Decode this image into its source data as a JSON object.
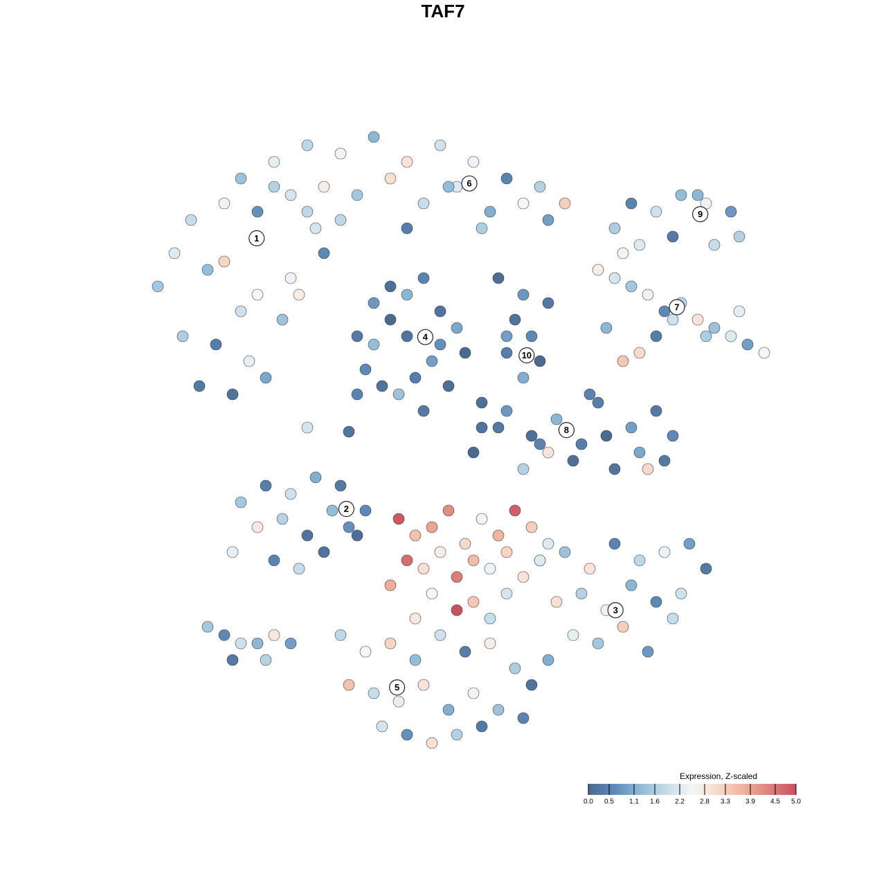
{
  "chart_data": {
    "type": "scatter",
    "title": "TAF7",
    "xlim": [
      -40,
      40
    ],
    "ylim": [
      -40,
      40
    ],
    "color_title": "Expression, Z-scaled",
    "clim": [
      0,
      5
    ],
    "colors": [
      "#4a6a92",
      "#5d8ab8",
      "#8fbad8",
      "#c4dcea",
      "#f4f6f7",
      "#f8d9c9",
      "#efb19b",
      "#dd7f7a",
      "#c9505f"
    ],
    "cticks": [
      {
        "value": 0,
        "label": "0.0"
      },
      0.5,
      1.1,
      1.6,
      2.2,
      2.8,
      3.3,
      3.9,
      4.5,
      {
        "value": 5,
        "label": "5.0"
      }
    ],
    "groups": [
      {
        "x": [
          -36,
          -34,
          -32,
          -30,
          -28,
          -26,
          -24,
          -22,
          -20,
          -18,
          -16,
          -33,
          -29,
          -25,
          -21,
          -17,
          -31,
          -27,
          -23,
          -19,
          -28,
          -24
        ],
        "y": [
          18,
          22,
          26,
          20,
          28,
          15,
          24,
          30,
          19,
          27,
          22,
          12,
          11,
          9,
          14,
          25,
          6,
          5,
          7,
          17,
          21,
          17
        ],
        "expression": [
          1.5,
          2.2,
          1.9,
          1.3,
          2.6,
          2.0,
          2.9,
          1.7,
          2.4,
          1.8,
          0.6,
          1.6,
          0.4,
          2.3,
          1.4,
          2.1,
          0.3,
          0.2,
          1.0,
          2.7,
          3.2,
          2.5
        ]
      },
      {
        "x": [
          -26,
          -22,
          -18,
          -14,
          -10,
          -6,
          -2,
          2,
          6,
          10,
          13,
          -20,
          -16,
          -12,
          -8,
          -4,
          0,
          4,
          8,
          -24,
          -14,
          -6,
          3,
          11
        ],
        "y": [
          31,
          33,
          35,
          34,
          36,
          33,
          35,
          33,
          31,
          30,
          28,
          29,
          30,
          29,
          31,
          28,
          30,
          27,
          28,
          27,
          26,
          25,
          25,
          26
        ],
        "expression": [
          1.4,
          2.3,
          1.8,
          2.6,
          1.2,
          2.9,
          2.0,
          2.4,
          0.5,
          1.7,
          3.3,
          2.1,
          2.7,
          1.5,
          3.0,
          1.9,
          2.2,
          1.1,
          2.5,
          0.7,
          1.8,
          0.4,
          1.6,
          0.9
        ]
      },
      {
        "x": [
          -12,
          -10,
          -8,
          -6,
          -4,
          -2,
          0,
          1,
          -11,
          -9,
          -7,
          -5,
          -3,
          -1,
          -10,
          -6,
          -2,
          -8,
          -4,
          -12
        ],
        "y": [
          12,
          16,
          18,
          17,
          19,
          15,
          13,
          10,
          8,
          6,
          5,
          7,
          9,
          6,
          11,
          12,
          11,
          14,
          3,
          5
        ],
        "expression": [
          0.3,
          0.8,
          0.1,
          1.2,
          0.5,
          0.2,
          1.0,
          0.0,
          0.6,
          0.2,
          1.4,
          0.4,
          0.9,
          0.1,
          1.3,
          0.2,
          0.7,
          0.0,
          0.3,
          0.5
        ]
      },
      {
        "x": [
          7,
          9,
          10,
          8,
          6,
          11,
          8,
          5
        ],
        "y": [
          14,
          12,
          9,
          7,
          10,
          16,
          17,
          19
        ],
        "expression": [
          0.2,
          0.6,
          0.0,
          1.1,
          0.4,
          0.3,
          0.8,
          0.1
        ]
      },
      {
        "x": [
          19,
          21,
          24,
          27,
          30,
          33,
          34,
          22,
          26,
          31,
          29,
          20
        ],
        "y": [
          25,
          28,
          27,
          29,
          28,
          27,
          24,
          23,
          24,
          23,
          29,
          22
        ],
        "expression": [
          1.6,
          0.5,
          2.0,
          1.3,
          2.4,
          0.8,
          1.7,
          2.2,
          0.3,
          1.9,
          1.2,
          2.6
        ]
      },
      {
        "x": [
          17,
          19,
          21,
          23,
          25,
          27,
          29,
          31,
          33,
          35,
          37,
          18,
          22,
          26,
          30,
          34,
          24,
          20
        ],
        "y": [
          20,
          19,
          18,
          17,
          15,
          16,
          14,
          13,
          12,
          11,
          10,
          13,
          10,
          14,
          12,
          15,
          12,
          9
        ],
        "expression": [
          2.7,
          2.1,
          1.5,
          2.4,
          0.6,
          1.8,
          2.9,
          1.4,
          2.2,
          0.9,
          2.5,
          1.2,
          3.1,
          2.0,
          1.6,
          2.3,
          0.4,
          3.4
        ]
      },
      {
        "x": [
          3,
          6,
          9,
          12,
          15,
          18,
          21,
          24,
          26,
          14,
          16,
          19,
          22,
          25,
          8,
          11,
          17,
          23
        ],
        "y": [
          1,
          3,
          0,
          2,
          -1,
          0,
          1,
          3,
          0,
          -3,
          5,
          -4,
          -2,
          -3,
          -4,
          -2,
          4,
          -4
        ],
        "expression": [
          0.2,
          0.8,
          0.1,
          1.2,
          0.4,
          0.0,
          0.9,
          0.3,
          0.6,
          0.1,
          0.5,
          0.2,
          1.0,
          0.3,
          1.7,
          2.9,
          0.4,
          3.1
        ]
      },
      {
        "x": [
          -26,
          -23,
          -20,
          -17,
          -14,
          -11,
          -24,
          -21,
          -18,
          -15,
          -12,
          -27,
          -22,
          -19,
          -16,
          -13
        ],
        "y": [
          -8,
          -6,
          -7,
          -5,
          -6,
          -9,
          -11,
          -10,
          -12,
          -9,
          -12,
          -14,
          -15,
          -16,
          -14,
          -11
        ],
        "expression": [
          1.5,
          0.4,
          2.0,
          1.1,
          0.3,
          0.6,
          2.8,
          1.7,
          0.2,
          1.3,
          0.1,
          2.3,
          0.5,
          1.9,
          0.2,
          0.7
        ]
      },
      {
        "x": [
          -7,
          -5,
          -3,
          -1,
          1,
          3,
          5,
          7,
          9,
          11,
          -6,
          -4,
          -2,
          0,
          2,
          4,
          6,
          8,
          10,
          -8,
          -3,
          2,
          6,
          -5,
          0,
          4
        ],
        "y": [
          -10,
          -12,
          -11,
          -9,
          -13,
          -10,
          -12,
          -9,
          -11,
          -13,
          -15,
          -16,
          -14,
          -17,
          -15,
          -16,
          -14,
          -17,
          -15,
          -18,
          -19,
          -20,
          -19,
          -22,
          -21,
          -22
        ],
        "expression": [
          4.9,
          3.5,
          3.9,
          4.2,
          3.1,
          2.6,
          3.7,
          4.8,
          3.3,
          2.2,
          4.6,
          3.0,
          2.7,
          4.4,
          3.6,
          2.4,
          3.2,
          2.9,
          1.6,
          3.8,
          2.5,
          3.4,
          2.1,
          2.8,
          5.0,
          1.9
        ]
      },
      {
        "x": [
          10,
          13,
          16,
          19,
          22,
          25,
          28,
          30,
          12,
          15,
          18,
          21,
          24,
          27,
          14,
          17,
          20,
          23,
          26,
          11
        ],
        "y": [
          -15,
          -14,
          -16,
          -13,
          -15,
          -14,
          -13,
          -16,
          -20,
          -19,
          -21,
          -18,
          -20,
          -19,
          -24,
          -25,
          -23,
          -26,
          -22,
          -27
        ],
        "expression": [
          2.2,
          1.4,
          2.9,
          0.5,
          1.8,
          2.4,
          0.9,
          0.3,
          3.0,
          1.7,
          2.6,
          1.2,
          0.6,
          2.0,
          2.3,
          1.5,
          3.3,
          0.8,
          1.9,
          1.1
        ]
      },
      {
        "x": [
          -14,
          -11,
          -8,
          -5,
          -2,
          1,
          4,
          7,
          9,
          -13,
          -10,
          -7,
          -4,
          -1,
          2,
          5,
          8,
          -9,
          -6,
          -3,
          0,
          3
        ],
        "y": [
          -24,
          -26,
          -25,
          -27,
          -24,
          -26,
          -25,
          -28,
          -30,
          -30,
          -31,
          -32,
          -30,
          -33,
          -31,
          -33,
          -34,
          -35,
          -36,
          -37,
          -36,
          -35
        ],
        "expression": [
          1.8,
          2.5,
          3.2,
          1.3,
          2.0,
          0.4,
          2.7,
          1.6,
          0.2,
          3.5,
          1.9,
          2.3,
          2.9,
          1.1,
          2.6,
          1.4,
          0.5,
          2.1,
          0.7,
          3.0,
          1.7,
          0.3
        ]
      },
      {
        "x": [
          -30,
          -28,
          -26,
          -24,
          -22,
          -27,
          -23,
          -20
        ],
        "y": [
          -23,
          -24,
          -25,
          -25,
          -24,
          -27,
          -27,
          -25
        ],
        "expression": [
          1.5,
          0.6,
          2.0,
          1.2,
          2.8,
          0.3,
          1.7,
          0.9
        ]
      },
      {
        "x": [
          -18,
          -13,
          3,
          5,
          2,
          10,
          -1,
          6
        ],
        "y": [
          1,
          0.5,
          4,
          1,
          -2,
          -1,
          30,
          12
        ],
        "expression": [
          2.1,
          0.2,
          0.1,
          0.3,
          0.0,
          0.5,
          1.3,
          0.9
        ]
      }
    ],
    "clusters": [
      {
        "label": "1",
        "x": -24.1,
        "y": 23.8
      },
      {
        "label": "2",
        "x": -13.3,
        "y": -8.8
      },
      {
        "label": "3",
        "x": 19.1,
        "y": -21
      },
      {
        "label": "4",
        "x": -3.8,
        "y": 11.9
      },
      {
        "label": "5",
        "x": -7.2,
        "y": -30.3
      },
      {
        "label": "6",
        "x": 1.5,
        "y": 30.4
      },
      {
        "label": "7",
        "x": 26.5,
        "y": 15.5
      },
      {
        "label": "8",
        "x": 13.2,
        "y": 0.7
      },
      {
        "label": "9",
        "x": 29.3,
        "y": 26.7
      },
      {
        "label": "10",
        "x": 8.4,
        "y": 9.7
      }
    ]
  }
}
